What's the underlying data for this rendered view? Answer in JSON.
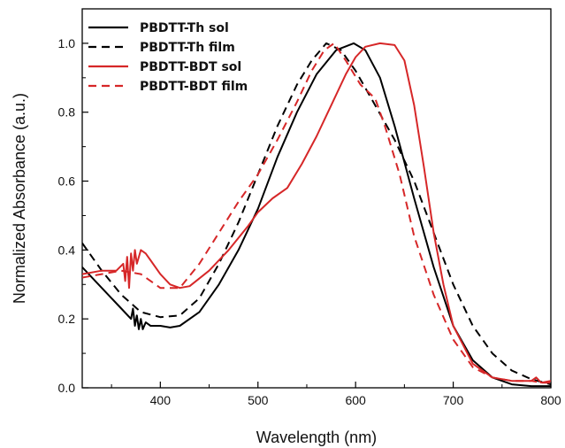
{
  "chart_data": {
    "type": "line",
    "xlabel": "Wavelength (nm)",
    "ylabel": "Normalized Absorbance (a.u.)",
    "xlim": [
      320,
      800
    ],
    "ylim": [
      0.0,
      1.1
    ],
    "x_ticks": [
      "400",
      "500",
      "600",
      "700",
      "800"
    ],
    "y_ticks": [
      "0.0",
      "0.2",
      "0.4",
      "0.6",
      "0.8",
      "1.0"
    ],
    "grid": false,
    "legend_position": "top-left",
    "series": [
      {
        "name": "PBDTT-Th sol",
        "color": "#000000",
        "dash": "solid",
        "points": [
          [
            320,
            0.35
          ],
          [
            340,
            0.29
          ],
          [
            360,
            0.23
          ],
          [
            370,
            0.2
          ],
          [
            372,
            0.23
          ],
          [
            374,
            0.18
          ],
          [
            376,
            0.21
          ],
          [
            378,
            0.17
          ],
          [
            380,
            0.2
          ],
          [
            382,
            0.17
          ],
          [
            385,
            0.19
          ],
          [
            390,
            0.18
          ],
          [
            400,
            0.18
          ],
          [
            410,
            0.175
          ],
          [
            420,
            0.18
          ],
          [
            440,
            0.22
          ],
          [
            460,
            0.3
          ],
          [
            480,
            0.4
          ],
          [
            500,
            0.52
          ],
          [
            520,
            0.67
          ],
          [
            540,
            0.8
          ],
          [
            560,
            0.91
          ],
          [
            580,
            0.98
          ],
          [
            598,
            1.0
          ],
          [
            610,
            0.98
          ],
          [
            625,
            0.9
          ],
          [
            640,
            0.76
          ],
          [
            660,
            0.55
          ],
          [
            680,
            0.35
          ],
          [
            700,
            0.18
          ],
          [
            720,
            0.08
          ],
          [
            740,
            0.03
          ],
          [
            760,
            0.01
          ],
          [
            780,
            0.005
          ],
          [
            800,
            0.005
          ]
        ]
      },
      {
        "name": "PBDTT-Th film",
        "color": "#000000",
        "dash": "dashed",
        "points": [
          [
            320,
            0.42
          ],
          [
            340,
            0.34
          ],
          [
            360,
            0.27
          ],
          [
            380,
            0.22
          ],
          [
            400,
            0.205
          ],
          [
            420,
            0.21
          ],
          [
            440,
            0.26
          ],
          [
            460,
            0.36
          ],
          [
            480,
            0.48
          ],
          [
            500,
            0.62
          ],
          [
            520,
            0.76
          ],
          [
            540,
            0.88
          ],
          [
            555,
            0.95
          ],
          [
            570,
            1.0
          ],
          [
            585,
            0.98
          ],
          [
            600,
            0.92
          ],
          [
            620,
            0.82
          ],
          [
            640,
            0.72
          ],
          [
            660,
            0.6
          ],
          [
            680,
            0.45
          ],
          [
            700,
            0.3
          ],
          [
            720,
            0.18
          ],
          [
            740,
            0.1
          ],
          [
            760,
            0.05
          ],
          [
            780,
            0.025
          ],
          [
            800,
            0.01
          ]
        ]
      },
      {
        "name": "PBDTT-BDT sol",
        "color": "#d62728",
        "dash": "solid",
        "points": [
          [
            320,
            0.33
          ],
          [
            340,
            0.34
          ],
          [
            355,
            0.34
          ],
          [
            362,
            0.36
          ],
          [
            364,
            0.31
          ],
          [
            366,
            0.38
          ],
          [
            368,
            0.29
          ],
          [
            370,
            0.39
          ],
          [
            372,
            0.34
          ],
          [
            374,
            0.4
          ],
          [
            376,
            0.36
          ],
          [
            380,
            0.4
          ],
          [
            385,
            0.39
          ],
          [
            390,
            0.37
          ],
          [
            400,
            0.33
          ],
          [
            410,
            0.3
          ],
          [
            420,
            0.29
          ],
          [
            430,
            0.295
          ],
          [
            450,
            0.34
          ],
          [
            470,
            0.4
          ],
          [
            490,
            0.47
          ],
          [
            500,
            0.51
          ],
          [
            515,
            0.55
          ],
          [
            530,
            0.58
          ],
          [
            545,
            0.65
          ],
          [
            560,
            0.73
          ],
          [
            575,
            0.82
          ],
          [
            590,
            0.91
          ],
          [
            600,
            0.96
          ],
          [
            610,
            0.99
          ],
          [
            625,
            1.0
          ],
          [
            640,
            0.995
          ],
          [
            650,
            0.95
          ],
          [
            660,
            0.82
          ],
          [
            670,
            0.64
          ],
          [
            680,
            0.45
          ],
          [
            690,
            0.3
          ],
          [
            700,
            0.18
          ],
          [
            720,
            0.07
          ],
          [
            740,
            0.03
          ],
          [
            760,
            0.02
          ],
          [
            780,
            0.02
          ],
          [
            785,
            0.03
          ],
          [
            790,
            0.015
          ],
          [
            800,
            0.02
          ]
        ]
      },
      {
        "name": "PBDTT-BDT film",
        "color": "#d62728",
        "dash": "dashed",
        "points": [
          [
            320,
            0.32
          ],
          [
            340,
            0.33
          ],
          [
            360,
            0.34
          ],
          [
            380,
            0.33
          ],
          [
            400,
            0.29
          ],
          [
            420,
            0.29
          ],
          [
            440,
            0.36
          ],
          [
            460,
            0.45
          ],
          [
            480,
            0.54
          ],
          [
            500,
            0.62
          ],
          [
            520,
            0.72
          ],
          [
            540,
            0.83
          ],
          [
            555,
            0.92
          ],
          [
            568,
            0.98
          ],
          [
            578,
            1.0
          ],
          [
            590,
            0.95
          ],
          [
            605,
            0.88
          ],
          [
            620,
            0.84
          ],
          [
            630,
            0.76
          ],
          [
            645,
            0.62
          ],
          [
            660,
            0.44
          ],
          [
            680,
            0.27
          ],
          [
            700,
            0.14
          ],
          [
            720,
            0.06
          ],
          [
            740,
            0.03
          ],
          [
            760,
            0.02
          ],
          [
            780,
            0.02
          ],
          [
            790,
            0.015
          ],
          [
            800,
            0.015
          ]
        ]
      }
    ]
  }
}
